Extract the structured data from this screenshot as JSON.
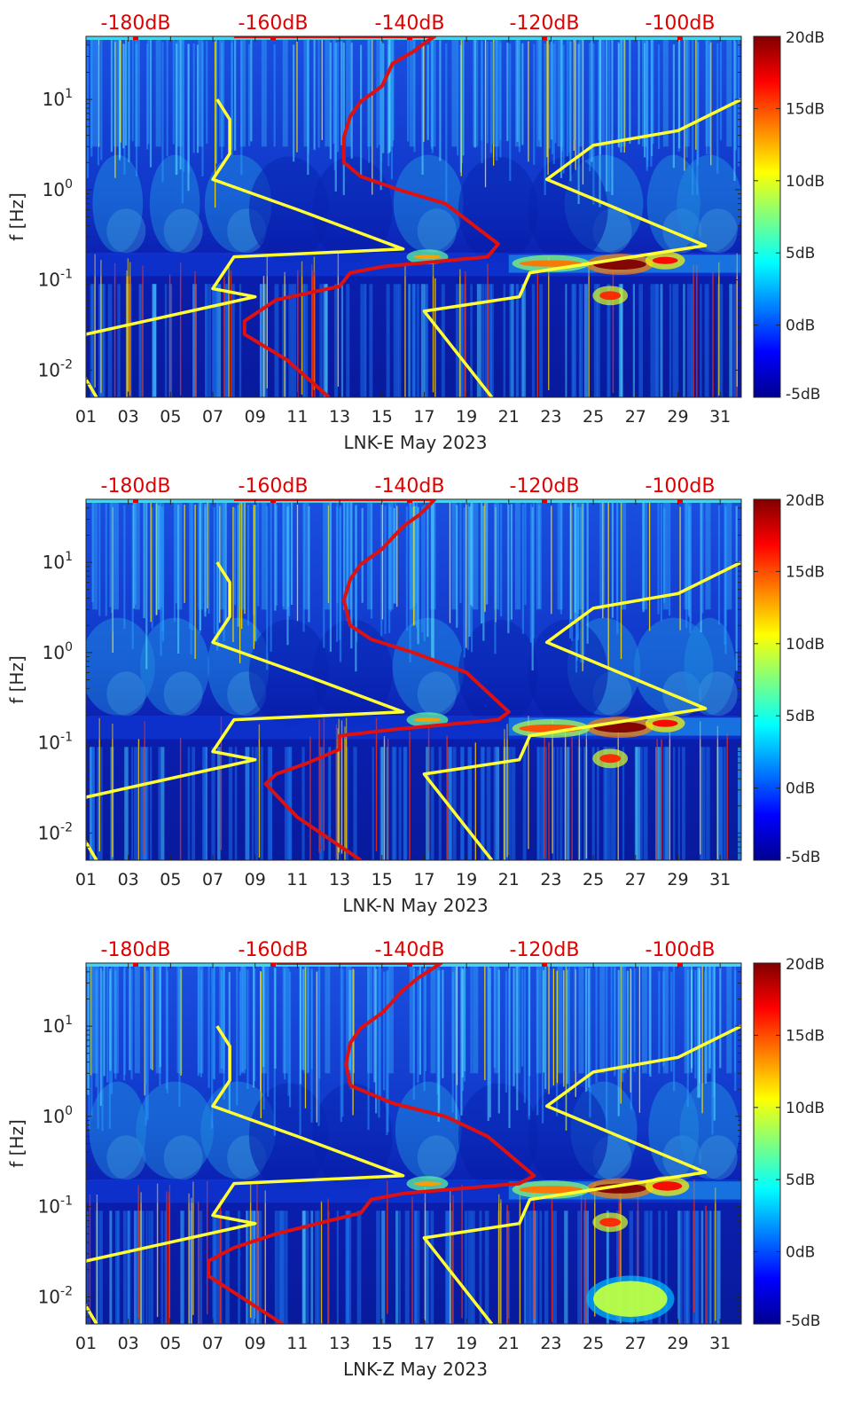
{
  "chart_data": [
    {
      "type": "heatmap",
      "station": "LNK-E",
      "xlabel": "LNK-E May 2023",
      "ylabel": "f [Hz]",
      "xlim": [
        1,
        32
      ],
      "ylim": [
        0.005,
        50
      ],
      "y_scale": "log",
      "x_ticks": [
        "01",
        "03",
        "05",
        "07",
        "09",
        "11",
        "13",
        "15",
        "17",
        "19",
        "21",
        "23",
        "25",
        "27",
        "29",
        "31"
      ],
      "y_ticks": [
        "10^-2",
        "10^-1",
        "10^0",
        "10^1"
      ],
      "top_ticks": [
        "-180dB",
        "-160dB",
        "-140dB",
        "-120dB",
        "-100dB"
      ],
      "top_ticks_color": "#e00000",
      "colorbar": {
        "ticks": [
          "20dB",
          "15dB",
          "10dB",
          "5dB",
          "0dB",
          "-5dB"
        ],
        "range": [
          -5,
          20
        ],
        "colormap": "jet"
      },
      "overlays": [
        {
          "name": "noise-model-low",
          "color": "#ffff33",
          "points": [
            [
              7.2,
              10
            ],
            [
              7.8,
              6
            ],
            [
              7.8,
              2.5
            ],
            [
              7.0,
              1.3
            ],
            [
              11.0,
              0.6
            ],
            [
              16.0,
              0.22
            ],
            [
              8.0,
              0.18
            ],
            [
              7.0,
              0.08
            ],
            [
              9.0,
              0.065
            ],
            [
              1.0,
              0.025
            ],
            [
              0.3,
              0.015
            ],
            [
              1.5,
              0.005
            ]
          ]
        },
        {
          "name": "noise-model-high",
          "color": "#ffff33",
          "points": [
            [
              32.0,
              10
            ],
            [
              29.0,
              4.5
            ],
            [
              25.0,
              3.1
            ],
            [
              22.8,
              1.3
            ],
            [
              30.3,
              0.24
            ],
            [
              22.0,
              0.12
            ],
            [
              21.5,
              0.065
            ],
            [
              17.0,
              0.045
            ],
            [
              20.2,
              0.005
            ]
          ]
        },
        {
          "name": "median-psd",
          "color": "#dd1111",
          "points": [
            [
              8.0,
              50
            ],
            [
              17.5,
              50
            ],
            [
              17.0,
              42
            ],
            [
              16.5,
              34
            ],
            [
              15.5,
              25
            ],
            [
              15.0,
              14
            ],
            [
              14.0,
              9.5
            ],
            [
              13.5,
              6.5
            ],
            [
              13.2,
              3.8
            ],
            [
              13.2,
              2.0
            ],
            [
              14.0,
              1.4
            ],
            [
              15.8,
              1.0
            ],
            [
              18.0,
              0.7
            ],
            [
              20.5,
              0.25
            ],
            [
              20.0,
              0.18
            ],
            [
              15.0,
              0.14
            ],
            [
              13.5,
              0.12
            ],
            [
              13.0,
              0.085
            ],
            [
              10.0,
              0.06
            ],
            [
              8.5,
              0.035
            ],
            [
              8.5,
              0.025
            ],
            [
              10.5,
              0.013
            ],
            [
              12.5,
              0.005
            ]
          ]
        }
      ],
      "hotspots": [
        {
          "x": [
            25,
            27.5
          ],
          "y": [
            0.13,
            0.17
          ],
          "level": 20
        },
        {
          "x": [
            27.8,
            29.0
          ],
          "y": [
            0.15,
            0.18
          ],
          "level": 17
        },
        {
          "x": [
            21.5,
            24.5
          ],
          "y": [
            0.14,
            0.165
          ],
          "level": 14
        },
        {
          "x": [
            25.3,
            26.3
          ],
          "y": [
            0.06,
            0.075
          ],
          "level": 16
        },
        {
          "x": [
            16.5,
            17.8
          ],
          "y": [
            0.17,
            0.19
          ],
          "level": 13
        }
      ]
    },
    {
      "type": "heatmap",
      "station": "LNK-N",
      "xlabel": "LNK-N May 2023",
      "ylabel": "f [Hz]",
      "xlim": [
        1,
        32
      ],
      "ylim": [
        0.005,
        50
      ],
      "y_scale": "log",
      "x_ticks": [
        "01",
        "03",
        "05",
        "07",
        "09",
        "11",
        "13",
        "15",
        "17",
        "19",
        "21",
        "23",
        "25",
        "27",
        "29",
        "31"
      ],
      "y_ticks": [
        "10^-2",
        "10^-1",
        "10^0",
        "10^1"
      ],
      "top_ticks": [
        "-180dB",
        "-160dB",
        "-140dB",
        "-120dB",
        "-100dB"
      ],
      "top_ticks_color": "#e00000",
      "colorbar": {
        "ticks": [
          "20dB",
          "15dB",
          "10dB",
          "5dB",
          "0dB",
          "-5dB"
        ],
        "range": [
          -5,
          20
        ],
        "colormap": "jet"
      },
      "overlays": [
        {
          "name": "noise-model-low",
          "color": "#ffff33",
          "points": [
            [
              7.2,
              10
            ],
            [
              7.8,
              6
            ],
            [
              7.8,
              2.5
            ],
            [
              7.0,
              1.3
            ],
            [
              11.0,
              0.6
            ],
            [
              16.0,
              0.22
            ],
            [
              8.0,
              0.18
            ],
            [
              7.0,
              0.08
            ],
            [
              9.0,
              0.065
            ],
            [
              1.0,
              0.025
            ],
            [
              0.3,
              0.015
            ],
            [
              1.5,
              0.005
            ]
          ]
        },
        {
          "name": "noise-model-high",
          "color": "#ffff33",
          "points": [
            [
              32.0,
              10
            ],
            [
              29.0,
              4.5
            ],
            [
              25.0,
              3.1
            ],
            [
              22.8,
              1.3
            ],
            [
              30.3,
              0.24
            ],
            [
              22.0,
              0.12
            ],
            [
              21.5,
              0.065
            ],
            [
              17.0,
              0.045
            ],
            [
              20.2,
              0.005
            ]
          ]
        },
        {
          "name": "median-psd",
          "color": "#dd1111",
          "points": [
            [
              8.0,
              50
            ],
            [
              17.5,
              50
            ],
            [
              17.2,
              42
            ],
            [
              16.8,
              34
            ],
            [
              16.0,
              25
            ],
            [
              15.0,
              14
            ],
            [
              14.0,
              9.5
            ],
            [
              13.5,
              6.5
            ],
            [
              13.2,
              3.8
            ],
            [
              13.5,
              2.0
            ],
            [
              14.5,
              1.4
            ],
            [
              16.5,
              1.0
            ],
            [
              19.0,
              0.6
            ],
            [
              21.0,
              0.22
            ],
            [
              20.5,
              0.18
            ],
            [
              15.5,
              0.14
            ],
            [
              13.0,
              0.12
            ],
            [
              13.0,
              0.085
            ],
            [
              11.5,
              0.06
            ],
            [
              10.0,
              0.045
            ],
            [
              9.5,
              0.035
            ],
            [
              11.0,
              0.015
            ],
            [
              14.0,
              0.005
            ]
          ]
        }
      ],
      "hotspots": [
        {
          "x": [
            25,
            27.5
          ],
          "y": [
            0.13,
            0.17
          ],
          "level": 20
        },
        {
          "x": [
            27.8,
            29.0
          ],
          "y": [
            0.15,
            0.18
          ],
          "level": 17
        },
        {
          "x": [
            21.5,
            24.5
          ],
          "y": [
            0.13,
            0.16
          ],
          "level": 15
        },
        {
          "x": [
            25.3,
            26.3
          ],
          "y": [
            0.06,
            0.075
          ],
          "level": 16
        },
        {
          "x": [
            16.5,
            17.8
          ],
          "y": [
            0.17,
            0.19
          ],
          "level": 13
        }
      ]
    },
    {
      "type": "heatmap",
      "station": "LNK-Z",
      "xlabel": "LNK-Z May 2023",
      "ylabel": "f [Hz]",
      "xlim": [
        1,
        32
      ],
      "ylim": [
        0.005,
        50
      ],
      "y_scale": "log",
      "x_ticks": [
        "01",
        "03",
        "05",
        "07",
        "09",
        "11",
        "13",
        "15",
        "17",
        "19",
        "21",
        "23",
        "25",
        "27",
        "29",
        "31"
      ],
      "y_ticks": [
        "10^-2",
        "10^-1",
        "10^0",
        "10^1"
      ],
      "top_ticks": [
        "-180dB",
        "-160dB",
        "-140dB",
        "-120dB",
        "-100dB"
      ],
      "top_ticks_color": "#e00000",
      "colorbar": {
        "ticks": [
          "20dB",
          "15dB",
          "10dB",
          "5dB",
          "0dB",
          "-5dB"
        ],
        "range": [
          -5,
          20
        ],
        "colormap": "jet"
      },
      "overlays": [
        {
          "name": "noise-model-low",
          "color": "#ffff33",
          "points": [
            [
              7.2,
              10
            ],
            [
              7.8,
              6
            ],
            [
              7.8,
              2.5
            ],
            [
              7.0,
              1.3
            ],
            [
              11.0,
              0.6
            ],
            [
              16.0,
              0.22
            ],
            [
              8.0,
              0.18
            ],
            [
              7.0,
              0.08
            ],
            [
              9.0,
              0.065
            ],
            [
              1.0,
              0.025
            ],
            [
              0.3,
              0.015
            ],
            [
              1.5,
              0.005
            ]
          ]
        },
        {
          "name": "noise-model-high",
          "color": "#ffff33",
          "points": [
            [
              32.0,
              10
            ],
            [
              29.0,
              4.5
            ],
            [
              25.0,
              3.1
            ],
            [
              22.8,
              1.3
            ],
            [
              30.3,
              0.24
            ],
            [
              22.0,
              0.12
            ],
            [
              21.5,
              0.065
            ],
            [
              17.0,
              0.045
            ],
            [
              20.2,
              0.005
            ]
          ]
        },
        {
          "name": "median-psd",
          "color": "#dd1111",
          "points": [
            [
              10.0,
              50
            ],
            [
              17.8,
              50
            ],
            [
              17.3,
              42
            ],
            [
              16.7,
              34
            ],
            [
              16.0,
              25
            ],
            [
              15.0,
              14
            ],
            [
              14.0,
              9.5
            ],
            [
              13.5,
              6.5
            ],
            [
              13.3,
              3.8
            ],
            [
              13.5,
              2.2
            ],
            [
              15.5,
              1.4
            ],
            [
              18.0,
              1.0
            ],
            [
              20.0,
              0.6
            ],
            [
              22.2,
              0.22
            ],
            [
              21.5,
              0.18
            ],
            [
              16.0,
              0.14
            ],
            [
              14.5,
              0.12
            ],
            [
              14.0,
              0.085
            ],
            [
              10.0,
              0.05
            ],
            [
              8.0,
              0.035
            ],
            [
              6.8,
              0.025
            ],
            [
              6.8,
              0.017
            ],
            [
              10.3,
              0.005
            ]
          ]
        }
      ],
      "hotspots": [
        {
          "x": [
            25,
            27.5
          ],
          "y": [
            0.14,
            0.18
          ],
          "level": 20
        },
        {
          "x": [
            27.8,
            29.2
          ],
          "y": [
            0.15,
            0.19
          ],
          "level": 17
        },
        {
          "x": [
            21.5,
            24.5
          ],
          "y": [
            0.14,
            0.17
          ],
          "level": 14
        },
        {
          "x": [
            25.3,
            26.3
          ],
          "y": [
            0.06,
            0.075
          ],
          "level": 16
        },
        {
          "x": [
            16.5,
            17.8
          ],
          "y": [
            0.17,
            0.19
          ],
          "level": 13
        },
        {
          "x": [
            25.0,
            28.5
          ],
          "y": [
            0.006,
            0.015
          ],
          "level": 9
        }
      ]
    }
  ]
}
